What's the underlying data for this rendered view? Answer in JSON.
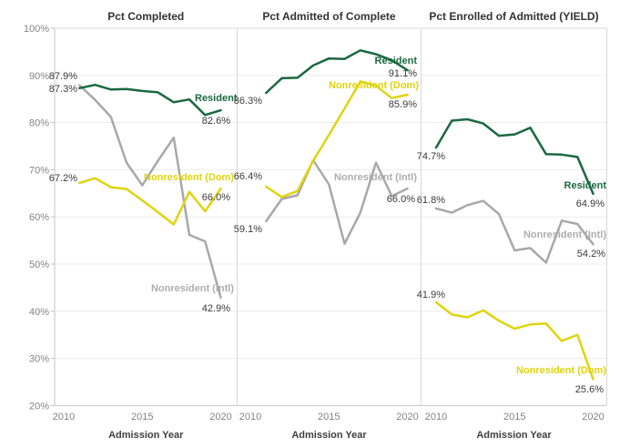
{
  "figure": {
    "x_axis_title": "Admission Year",
    "y_tick_labels": [
      "100%",
      "90%",
      "80%",
      "70%",
      "60%",
      "50%",
      "40%",
      "30%",
      "20%"
    ],
    "x_tick_labels": [
      "2010",
      "2015",
      "2020"
    ],
    "colors": {
      "resident": "#1b6840",
      "nonresident_dom": "#dfd40f",
      "nonresident_intl": "#a8a8a8",
      "value_label": "#3b3b3b",
      "axis_text": "#848484",
      "title_text": "#333333",
      "gridline": "#ececec",
      "border": "#d8d8d8",
      "axis_line": "#c5c5c5"
    }
  },
  "chart_data": [
    {
      "type": "line",
      "title": "Pct Completed",
      "xlabel": "Admission Year",
      "ylabel": "",
      "ylim": [
        20,
        100
      ],
      "x_ticks": [
        2010,
        2015,
        2020
      ],
      "grid": true,
      "x": [
        2011,
        2012,
        2013,
        2014,
        2015,
        2016,
        2017,
        2018,
        2019,
        2020
      ],
      "series": [
        {
          "name": "Resident",
          "color": "#1b6840",
          "values": [
            87.3,
            88.0,
            87.0,
            87.1,
            86.7,
            86.4,
            84.3,
            84.9,
            81.6,
            82.6
          ],
          "first_label": "87.3%",
          "last_label": "82.6%"
        },
        {
          "name": "Nonresident (Dom)",
          "color": "#dfd40f",
          "values": [
            67.2,
            68.2,
            66.3,
            65.9,
            63.5,
            61.0,
            58.4,
            65.3,
            61.2,
            66.0
          ],
          "first_label": "67.2%",
          "last_label": "66.0%"
        },
        {
          "name": "Nonresident (Intl)",
          "color": "#a8a8a8",
          "values": [
            87.9,
            84.8,
            81.2,
            71.5,
            66.7,
            71.9,
            76.8,
            56.2,
            54.8,
            42.9
          ],
          "first_label": "87.9%",
          "last_label": "42.9%"
        }
      ]
    },
    {
      "type": "line",
      "title": "Pct Admitted of Complete",
      "xlabel": "Admission Year",
      "ylabel": "",
      "ylim": [
        20,
        100
      ],
      "x_ticks": [
        2010,
        2015,
        2020
      ],
      "grid": true,
      "x": [
        2011,
        2012,
        2013,
        2014,
        2015,
        2016,
        2017,
        2018,
        2019,
        2020
      ],
      "series": [
        {
          "name": "Resident",
          "color": "#1b6840",
          "values": [
            86.3,
            89.4,
            89.5,
            92.1,
            93.6,
            93.5,
            95.3,
            94.5,
            93.2,
            91.1
          ],
          "first_label": "86.3%",
          "last_label": "91.1%"
        },
        {
          "name": "Nonresident (Dom)",
          "color": "#dfd40f",
          "values": [
            66.4,
            64.2,
            65.5,
            71.9,
            77.4,
            83.0,
            88.7,
            87.8,
            85.2,
            85.9
          ],
          "first_label": "66.4%",
          "last_label": "85.9%"
        },
        {
          "name": "Nonresident (Intl)",
          "color": "#a8a8a8",
          "values": [
            59.1,
            63.8,
            64.6,
            72.0,
            66.9,
            54.3,
            60.9,
            71.5,
            64.4,
            66.0
          ],
          "first_label": "59.1%",
          "last_label": "66.0%"
        }
      ]
    },
    {
      "type": "line",
      "title": "Pct Enrolled of Admitted (YIELD)",
      "xlabel": "Admission Year",
      "ylabel": "",
      "ylim": [
        20,
        100
      ],
      "x_ticks": [
        2010,
        2015,
        2020
      ],
      "grid": true,
      "x": [
        2010,
        2011,
        2012,
        2013,
        2014,
        2015,
        2016,
        2017,
        2018,
        2019,
        2020
      ],
      "series": [
        {
          "name": "Resident",
          "color": "#1b6840",
          "values": [
            74.7,
            80.4,
            80.7,
            79.8,
            77.2,
            77.5,
            78.9,
            73.3,
            73.2,
            72.7,
            64.9
          ],
          "first_label": "74.7%",
          "last_label": "64.9%"
        },
        {
          "name": "Nonresident (Dom)",
          "color": "#dfd40f",
          "values": [
            41.9,
            39.3,
            38.7,
            40.2,
            38.0,
            36.3,
            37.2,
            37.4,
            33.7,
            35.0,
            25.6
          ],
          "first_label": "41.9%",
          "last_label": "25.6%"
        },
        {
          "name": "Nonresident (Intl)",
          "color": "#a8a8a8",
          "values": [
            61.8,
            60.9,
            62.5,
            63.4,
            60.6,
            52.9,
            53.4,
            50.3,
            59.2,
            58.5,
            54.2
          ],
          "first_label": "61.8%",
          "last_label": "54.2%"
        }
      ]
    }
  ]
}
